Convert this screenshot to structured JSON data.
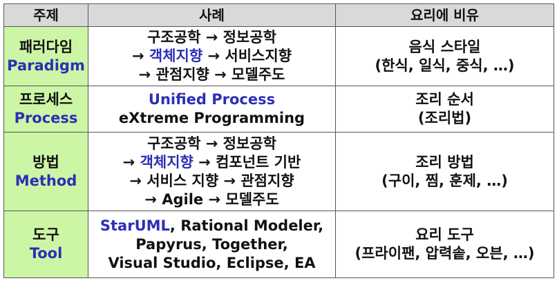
{
  "colors": {
    "header_bg": "#d9d9d9",
    "topic_bg": "#ccf5a6",
    "english_accent": "#2b2fb6",
    "text": "#111111",
    "border": "#555555"
  },
  "table": {
    "headers": [
      "주제",
      "사례",
      "요리에 비유"
    ],
    "rows": [
      {
        "topic_ko": "패러다임",
        "topic_en": "Paradigm",
        "example_lines": [
          [
            {
              "t": "구조공학 → 정보공학"
            }
          ],
          [
            {
              "t": "→ "
            },
            {
              "t": "객체지향",
              "accent": true
            },
            {
              "t": " → 서비스지향"
            }
          ],
          [
            {
              "t": "→ 관점지향 → 모델주도"
            }
          ]
        ],
        "analogy_lines": [
          "음식 스타일",
          "(한식, 일식, 중식, …)"
        ]
      },
      {
        "topic_ko": "프로세스",
        "topic_en": "Process",
        "example_lines": [
          [
            {
              "t": "Unified Process",
              "accent": true
            }
          ],
          [
            {
              "t": "eXtreme Programming"
            }
          ]
        ],
        "analogy_lines": [
          "조리 순서",
          "(조리법)"
        ]
      },
      {
        "topic_ko": "방법",
        "topic_en": "Method",
        "example_lines": [
          [
            {
              "t": "구조공학 → 정보공학"
            }
          ],
          [
            {
              "t": "→ "
            },
            {
              "t": "객체지향",
              "accent": true
            },
            {
              "t": " → 컴포넌트 기반"
            }
          ],
          [
            {
              "t": "→ 서비스 지향 → 관점지향"
            }
          ],
          [
            {
              "t": "→ Agile → 모델주도"
            }
          ]
        ],
        "analogy_lines": [
          "조리 방법",
          "(구이, 찜, 훈제, …)"
        ]
      },
      {
        "topic_ko": "도구",
        "topic_en": "Tool",
        "example_lines": [
          [
            {
              "t": "StarUML",
              "accent": true
            },
            {
              "t": ", Rational Modeler,"
            }
          ],
          [
            {
              "t": "Papyrus, Together,"
            }
          ],
          [
            {
              "t": "Visual Studio, Eclipse, EA"
            }
          ]
        ],
        "analogy_lines": [
          "요리 도구",
          "(프라이팬, 압력솥, 오븐, …)"
        ]
      }
    ]
  }
}
